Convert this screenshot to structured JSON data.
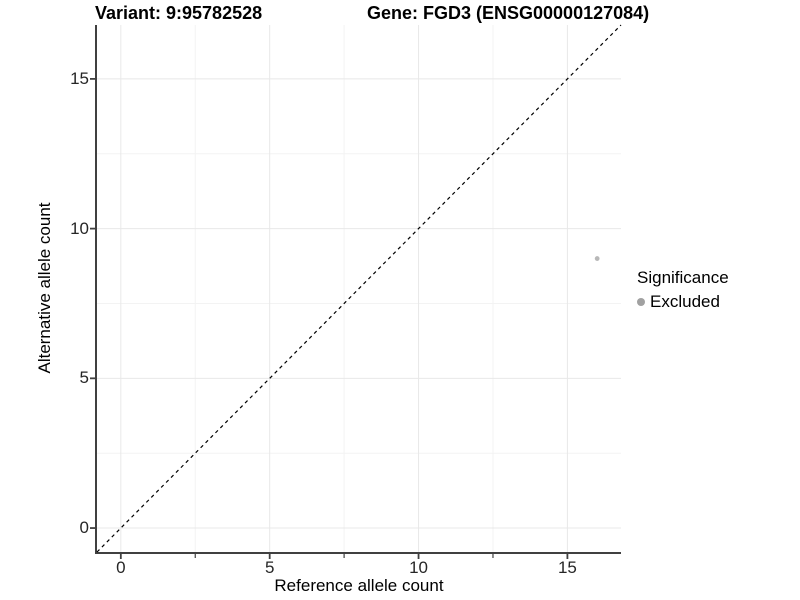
{
  "titles": {
    "variant": "Variant: 9:95782528",
    "gene": "Gene: FGD3 (ENSG00000127084)"
  },
  "legend": {
    "title": "Significance",
    "items": [
      {
        "label": "Excluded",
        "color": "#a1a1a1"
      }
    ]
  },
  "chart_data": {
    "type": "scatter",
    "title": "Variant: 9:95782528 | Gene: FGD3 (ENSG00000127084)",
    "xlabel": "Reference allele count",
    "ylabel": "Alternative allele count",
    "xlim": [
      -0.8,
      16.8
    ],
    "ylim": [
      -0.8,
      16.8
    ],
    "x_ticks": [
      0,
      5,
      10,
      15
    ],
    "y_ticks": [
      0,
      5,
      10,
      15
    ],
    "x_minor_ticks": [
      2.5,
      7.5,
      12.5
    ],
    "y_minor_gridlines": [
      2.5,
      7.5,
      12.5
    ],
    "grid": true,
    "legend_position": "right",
    "series": [
      {
        "name": "Excluded",
        "points": [
          {
            "x": 16,
            "y": 9
          }
        ],
        "color": "#b8b8b8",
        "point_radius": 2.4
      }
    ],
    "reference_line": {
      "type": "identity y=x",
      "style": "dashed",
      "color": "#000000"
    },
    "colors": {
      "background": "#ffffff",
      "major_grid": "#e8e8e8",
      "minor_grid": "#f3f3f3",
      "axis_line": "#404040",
      "tick_text": "#262626"
    }
  }
}
